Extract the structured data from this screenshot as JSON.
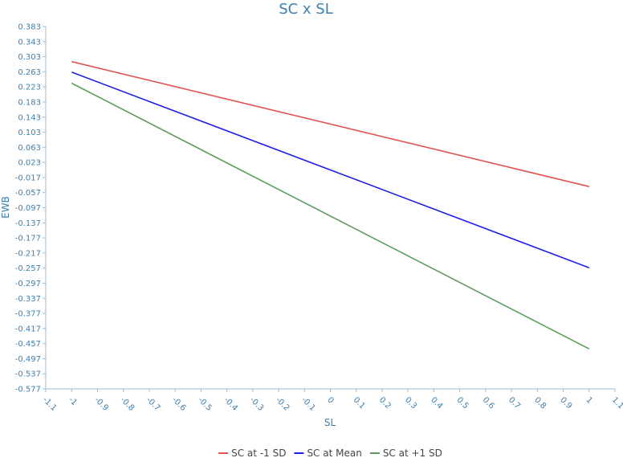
{
  "chart_data": {
    "type": "line",
    "title": "SC x SL",
    "xlabel": "SL",
    "ylabel": "EWB",
    "xlim": [
      -1.1,
      1.1
    ],
    "ylim": [
      -0.577,
      0.383
    ],
    "x_ticks": [
      "-1.1",
      "-1",
      "-0.9",
      "-0.8",
      "-0.7",
      "-0.6",
      "-0.5",
      "-0.4",
      "-0.3",
      "-0.2",
      "-0.1",
      "0",
      "0.1",
      "0.2",
      "0.3",
      "0.4",
      "0.5",
      "0.6",
      "0.7",
      "0.8",
      "0.9",
      "1",
      "1.1"
    ],
    "x_tick_values": [
      -1.1,
      -1,
      -0.9,
      -0.8,
      -0.7,
      -0.6,
      -0.5,
      -0.4,
      -0.3,
      -0.2,
      -0.1,
      0,
      0.1,
      0.2,
      0.3,
      0.4,
      0.5,
      0.6,
      0.7,
      0.8,
      0.9,
      1,
      1.1
    ],
    "y_ticks": [
      "0.383",
      "0.343",
      "0.303",
      "0.263",
      "0.223",
      "0.183",
      "0.143",
      "0.103",
      "0.063",
      "0.023",
      "-0.017",
      "-0.057",
      "-0.097",
      "-0.137",
      "-0.177",
      "-0.217",
      "-0.257",
      "-0.297",
      "-0.337",
      "-0.377",
      "-0.417",
      "-0.457",
      "-0.497",
      "-0.537",
      "-0.577"
    ],
    "y_tick_values": [
      0.383,
      0.343,
      0.303,
      0.263,
      0.223,
      0.183,
      0.143,
      0.103,
      0.063,
      0.023,
      -0.017,
      -0.057,
      -0.097,
      -0.137,
      -0.177,
      -0.217,
      -0.257,
      -0.297,
      -0.337,
      -0.377,
      -0.417,
      -0.457,
      -0.497,
      -0.537,
      -0.577
    ],
    "grid": false,
    "legend_position": "bottom-center",
    "series": [
      {
        "name": "SC at -1 SD",
        "color": "#e05252",
        "x": [
          -1,
          1
        ],
        "y": [
          0.29,
          -0.041
        ]
      },
      {
        "name": "SC at Mean",
        "color": "#1f1fe6",
        "x": [
          -1,
          1
        ],
        "y": [
          0.262,
          -0.256
        ]
      },
      {
        "name": "SC at +1 SD",
        "color": "#5e9a5e",
        "x": [
          -1,
          1
        ],
        "y": [
          0.233,
          -0.471
        ]
      }
    ]
  }
}
